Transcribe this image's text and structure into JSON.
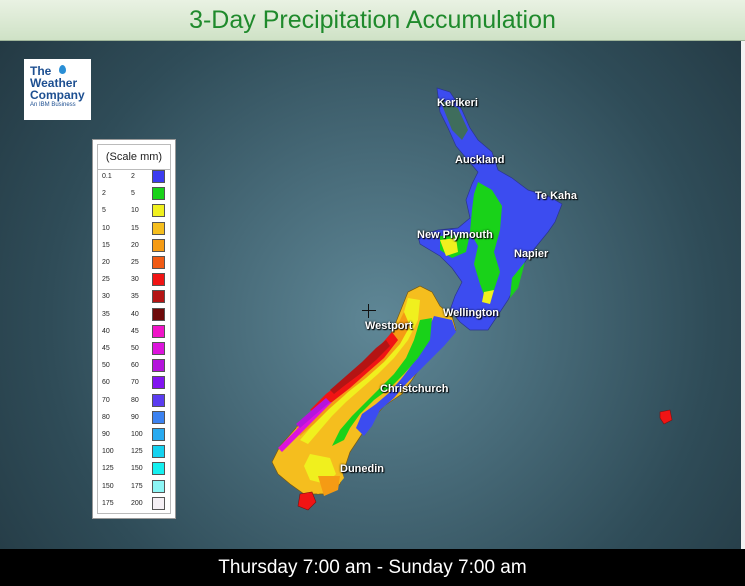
{
  "title": "3-Day Precipitation Accumulation",
  "time_range": "Thursday 7:00 am - Sunday 7:00 am",
  "logo": {
    "line1": "The",
    "line2": "Weather",
    "line3": "Company",
    "sub": "An IBM Business"
  },
  "legend": {
    "header": "(Scale mm)",
    "rows": [
      {
        "lo": "0.1",
        "hi": "2",
        "color": "#3c3cf0"
      },
      {
        "lo": "2",
        "hi": "5",
        "color": "#19d219"
      },
      {
        "lo": "5",
        "hi": "10",
        "color": "#f0f01e"
      },
      {
        "lo": "10",
        "hi": "15",
        "color": "#f5be1e"
      },
      {
        "lo": "15",
        "hi": "20",
        "color": "#f59b14"
      },
      {
        "lo": "20",
        "hi": "25",
        "color": "#f05a14"
      },
      {
        "lo": "25",
        "hi": "30",
        "color": "#f01414"
      },
      {
        "lo": "30",
        "hi": "35",
        "color": "#b41414"
      },
      {
        "lo": "35",
        "hi": "40",
        "color": "#6e0a0a"
      },
      {
        "lo": "40",
        "hi": "45",
        "color": "#f014c8"
      },
      {
        "lo": "45",
        "hi": "50",
        "color": "#dc14dc"
      },
      {
        "lo": "50",
        "hi": "60",
        "color": "#b414dc"
      },
      {
        "lo": "60",
        "hi": "70",
        "color": "#8214f0"
      },
      {
        "lo": "70",
        "hi": "80",
        "color": "#5a3cf0"
      },
      {
        "lo": "80",
        "hi": "90",
        "color": "#3c82f0"
      },
      {
        "lo": "90",
        "hi": "100",
        "color": "#28aaf0"
      },
      {
        "lo": "100",
        "hi": "125",
        "color": "#14d2f0"
      },
      {
        "lo": "125",
        "hi": "150",
        "color": "#14f0f0"
      },
      {
        "lo": "150",
        "hi": "175",
        "color": "#8cf5f5"
      },
      {
        "lo": "175",
        "hi": "200",
        "color": "#f5f0f5"
      }
    ]
  },
  "cities": [
    "Kerikeri",
    "Auckland",
    "Te Kaha",
    "New Plymouth",
    "Napier",
    "Wellington",
    "Westport",
    "Christchurch",
    "Dunedin"
  ]
}
